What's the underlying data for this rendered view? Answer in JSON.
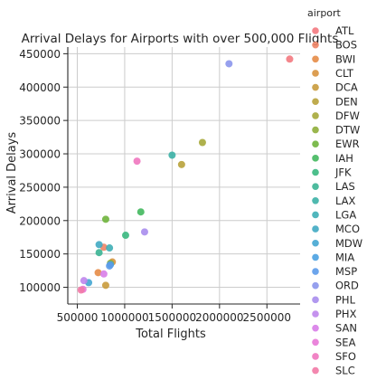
{
  "chart_data": {
    "type": "scatter",
    "title": "Arrival Delays for Airports with over 500,000 Flights",
    "xlabel": "Total Flights",
    "ylabel": "Arrival Delays",
    "xlim": [
      400000,
      2850000
    ],
    "ylim": [
      75000,
      460000
    ],
    "xticks": [
      500000,
      1000000,
      1500000,
      2000000,
      2500000
    ],
    "xtick_labels": [
      "500000",
      "1000000",
      "1500000",
      "2000000",
      "2500000"
    ],
    "yticks": [
      100000,
      150000,
      200000,
      250000,
      300000,
      350000,
      400000,
      450000
    ],
    "ytick_labels": [
      "100000",
      "150000",
      "200000",
      "250000",
      "300000",
      "350000",
      "400000",
      "450000"
    ],
    "grid": true,
    "legend_title": "airport",
    "legend_position": "right",
    "series": [
      {
        "name": "ATL",
        "color": "#f37980",
        "x": [
          2740000
        ],
        "y": [
          442000
        ]
      },
      {
        "name": "BOS",
        "color": "#ee8466",
        "x": [
          780000
        ],
        "y": [
          160000
        ]
      },
      {
        "name": "BWI",
        "color": "#e58c47",
        "x": [
          720000
        ],
        "y": [
          122000
        ]
      },
      {
        "name": "CLT",
        "color": "#d8933f",
        "x": [
          870000
        ],
        "y": [
          138000
        ]
      },
      {
        "name": "DCA",
        "color": "#c99b3c",
        "x": [
          800000
        ],
        "y": [
          103000
        ]
      },
      {
        "name": "DEN",
        "color": "#b8a23b",
        "x": [
          1600000
        ],
        "y": [
          284000
        ]
      },
      {
        "name": "DFW",
        "color": "#a6a83a",
        "x": [
          1820000
        ],
        "y": [
          317000
        ]
      },
      {
        "name": "DTW",
        "color": "#8fae3a",
        "x": [
          850000
        ],
        "y": [
          136000
        ]
      },
      {
        "name": "EWR",
        "color": "#6fb43c",
        "x": [
          800000
        ],
        "y": [
          202000
        ]
      },
      {
        "name": "IAH",
        "color": "#43b85e",
        "x": [
          1170000
        ],
        "y": [
          213000
        ]
      },
      {
        "name": "JFK",
        "color": "#3ab87f",
        "x": [
          1010000
        ],
        "y": [
          178000
        ]
      },
      {
        "name": "LAS",
        "color": "#3bb494",
        "x": [
          730000
        ],
        "y": [
          152000
        ]
      },
      {
        "name": "LAX",
        "color": "#3cb1a6",
        "x": [
          1500000
        ],
        "y": [
          298000
        ]
      },
      {
        "name": "LGA",
        "color": "#3eaeb5",
        "x": [
          840000
        ],
        "y": [
          159000
        ]
      },
      {
        "name": "MCO",
        "color": "#40aac3",
        "x": [
          730000
        ],
        "y": [
          164000
        ]
      },
      {
        "name": "MDW",
        "color": "#44a6d2",
        "x": [
          620000
        ],
        "y": [
          107000
        ]
      },
      {
        "name": "MIA",
        "color": "#4aa1e1",
        "x": [
          850000
        ],
        "y": [
          134000
        ]
      },
      {
        "name": "MSP",
        "color": "#5c9bea",
        "x": [
          840000
        ],
        "y": [
          132000
        ]
      },
      {
        "name": "ORD",
        "color": "#8b96ec",
        "x": [
          2100000
        ],
        "y": [
          435000
        ]
      },
      {
        "name": "PHL",
        "color": "#a98ded",
        "x": [
          1210000
        ],
        "y": [
          183000
        ]
      },
      {
        "name": "PHX",
        "color": "#bf86ec",
        "x": [
          570000
        ],
        "y": [
          110000
        ]
      },
      {
        "name": "SAN",
        "color": "#d87de8",
        "x": [
          780000
        ],
        "y": [
          120000
        ]
      },
      {
        "name": "SEA",
        "color": "#e878d7",
        "x": [
          560000
        ],
        "y": [
          97000
        ]
      },
      {
        "name": "SFO",
        "color": "#ef77bf",
        "x": [
          1130000
        ],
        "y": [
          289000
        ]
      },
      {
        "name": "SLC",
        "color": "#f27aa6",
        "x": [
          540000
        ],
        "y": [
          96000
        ]
      }
    ]
  }
}
